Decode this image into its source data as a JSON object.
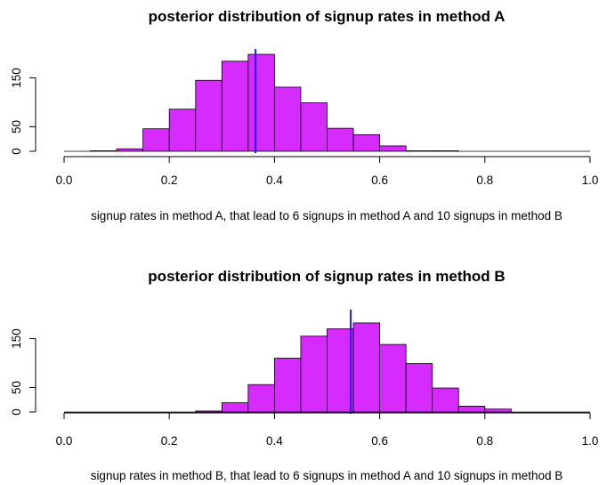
{
  "chart_data": [
    {
      "type": "bar",
      "title": "posterior distribution of signup rates in method A",
      "xlabel": "signup rates in method A, that lead to 6 signups in method A and 10 signups in method B",
      "ylabel": "",
      "bin_edges": [
        0.0,
        0.05,
        0.1,
        0.15,
        0.2,
        0.25,
        0.3,
        0.35,
        0.4,
        0.45,
        0.5,
        0.55,
        0.6,
        0.65,
        0.7,
        0.75,
        0.8,
        0.85,
        0.9,
        0.95,
        1.0
      ],
      "values": [
        0,
        1,
        5,
        46,
        86,
        145,
        184,
        198,
        131,
        99,
        47,
        34,
        11,
        1,
        1,
        0,
        0,
        0,
        0,
        0
      ],
      "xlim": [
        0,
        1
      ],
      "ylim": [
        0,
        200
      ],
      "xticks": [
        "0.0",
        "0.2",
        "0.4",
        "0.6",
        "0.8",
        "1.0"
      ],
      "yticks": [
        "0",
        "50",
        "150"
      ],
      "mean_line_x": 0.364,
      "bar_color": "#d62bff",
      "mean_line_color": "#1a1aff",
      "grid": false,
      "legend": "none"
    },
    {
      "type": "bar",
      "title": "posterior distribution of signup rates in method B",
      "xlabel": "signup rates in method B, that lead to 6 signups in method A and 10 signups in method B",
      "ylabel": "",
      "bin_edges": [
        0.0,
        0.05,
        0.1,
        0.15,
        0.2,
        0.25,
        0.3,
        0.35,
        0.4,
        0.45,
        0.5,
        0.55,
        0.6,
        0.65,
        0.7,
        0.75,
        0.8,
        0.85,
        0.9,
        0.95,
        1.0
      ],
      "values": [
        0,
        0,
        0,
        0,
        0,
        2,
        19,
        56,
        110,
        155,
        170,
        182,
        138,
        99,
        49,
        12,
        6,
        0,
        0,
        0
      ],
      "xlim": [
        0,
        1
      ],
      "ylim": [
        0,
        200
      ],
      "xticks": [
        "0.0",
        "0.2",
        "0.4",
        "0.6",
        "0.8",
        "1.0"
      ],
      "yticks": [
        "0",
        "50",
        "150"
      ],
      "mean_line_x": 0.545,
      "bar_color": "#d62bff",
      "mean_line_color": "#1a1aff",
      "grid": false,
      "legend": "none"
    }
  ]
}
